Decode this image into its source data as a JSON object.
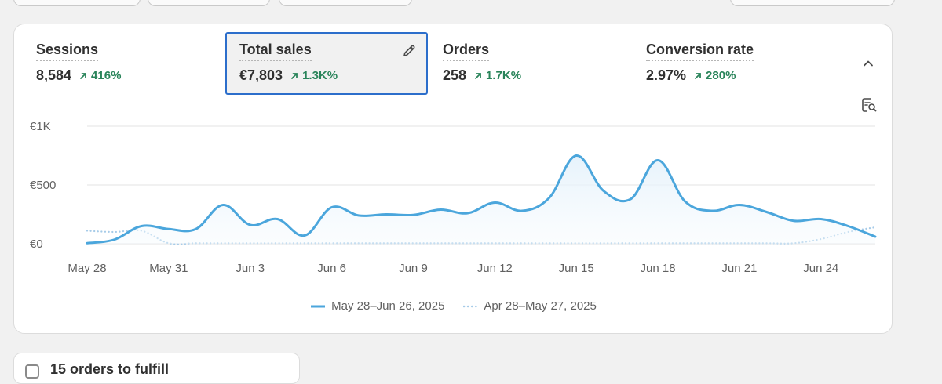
{
  "metrics": [
    {
      "label": "Sessions",
      "value": "8,584",
      "change": "416%"
    },
    {
      "label": "Total sales",
      "value": "€7,803",
      "change": "1.3K%",
      "selected": true
    },
    {
      "label": "Orders",
      "value": "258",
      "change": "1.7K%"
    },
    {
      "label": "Conversion rate",
      "value": "2.97%",
      "change": "280%"
    }
  ],
  "icons": {
    "edit": "pencil-icon",
    "collapse": "chevron-up-icon",
    "insight": "report-search-icon",
    "trend": "arrow-up-right-icon"
  },
  "colors": {
    "accent": "#2c6ecb",
    "positive": "#29845a",
    "current_series": "#4ba6dc",
    "previous_series": "#a6cbe8"
  },
  "chart_data": {
    "type": "line",
    "y_ticks": [
      "€0",
      "€500",
      "€1K"
    ],
    "ylim": [
      0,
      1000
    ],
    "x_ticks": [
      "May 28",
      "May 31",
      "Jun 3",
      "Jun 6",
      "Jun 9",
      "Jun 12",
      "Jun 15",
      "Jun 18",
      "Jun 21",
      "Jun 24"
    ],
    "grid": true,
    "legend_position": "bottom-center",
    "series": [
      {
        "name": "May 28–Jun 26, 2025",
        "style": "solid",
        "values": [
          5,
          35,
          150,
          125,
          125,
          330,
          160,
          210,
          70,
          310,
          240,
          250,
          245,
          290,
          260,
          350,
          280,
          390,
          750,
          450,
          380,
          710,
          360,
          280,
          330,
          270,
          195,
          210,
          150,
          60
        ]
      },
      {
        "name": "Apr 28–May 27, 2025",
        "style": "dotted",
        "values": [
          110,
          100,
          110,
          5,
          5,
          5,
          5,
          5,
          5,
          5,
          5,
          5,
          5,
          5,
          5,
          5,
          5,
          5,
          5,
          5,
          5,
          5,
          5,
          5,
          5,
          5,
          5,
          40,
          100,
          140
        ]
      }
    ]
  },
  "bottom_card": {
    "text": "15 orders to fulfill"
  }
}
